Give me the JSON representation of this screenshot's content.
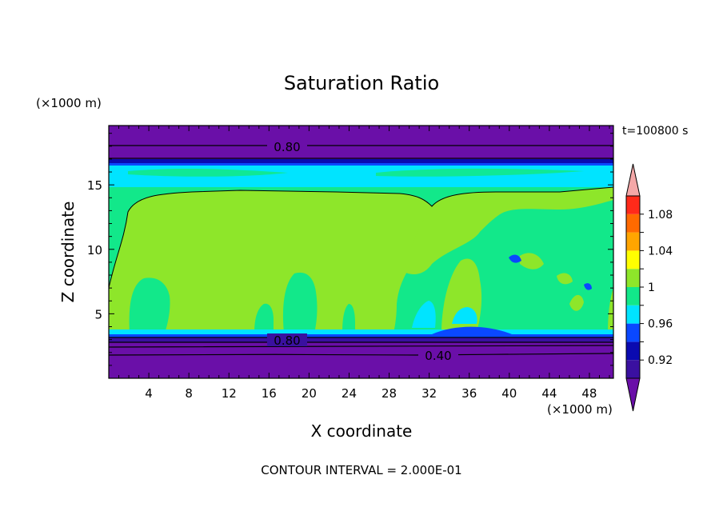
{
  "chart_data": {
    "type": "heatmap",
    "title": "Saturation Ratio",
    "xlabel": "X coordinate",
    "ylabel": "Z coordinate",
    "x_unit": "(×1000 m)",
    "y_unit": "(×1000 m)",
    "time_label": "t=100800 s",
    "footer": "CONTOUR INTERVAL = 2.000E-01",
    "xlim": [
      0,
      50.4
    ],
    "ylim": [
      0,
      19.6
    ],
    "x_ticks": [
      "4",
      "8",
      "12",
      "16",
      "20",
      "24",
      "28",
      "32",
      "36",
      "40",
      "44",
      "48"
    ],
    "y_ticks": [
      "5",
      "10",
      "15"
    ],
    "contour_labels": [
      "0.80",
      "0.80",
      "0.40"
    ],
    "colorbar": {
      "labels": [
        "0.92",
        "0.96",
        "1",
        "1.04",
        "1.08"
      ],
      "bins": [
        {
          "range": "<0.90",
          "color": "#6a0fa8"
        },
        {
          "range": "0.90-0.92",
          "color": "#3a10a0"
        },
        {
          "range": "0.92-0.94",
          "color": "#0a0ab0"
        },
        {
          "range": "0.94-0.96",
          "color": "#0a48ff"
        },
        {
          "range": "0.96-0.98",
          "color": "#00e4ff"
        },
        {
          "range": "0.98-1.00",
          "color": "#12e88a"
        },
        {
          "range": "1.00-1.02",
          "color": "#8ee62a"
        },
        {
          "range": "1.02-1.04",
          "color": "#ffff00"
        },
        {
          "range": "1.04-1.06",
          "color": "#ffa500"
        },
        {
          "range": "1.06-1.08",
          "color": "#ff6a00"
        },
        {
          "range": "1.08-1.10",
          "color": "#ff2a1a"
        },
        {
          "range": ">1.10",
          "color": "#f4a8a8"
        }
      ]
    },
    "layers": [
      {
        "z": [
          0,
          3.2
        ],
        "value": "<0.90"
      },
      {
        "z": [
          3.2,
          3.5
        ],
        "value": "0.90-0.94"
      },
      {
        "z": [
          3.5,
          14.8
        ],
        "value": "0.98-1.02 (mixed cloud field)"
      },
      {
        "z": [
          14.8,
          15.3
        ],
        "value": "0.98-1.00"
      },
      {
        "z": [
          15.3,
          17.0
        ],
        "value": "0.96-0.98"
      },
      {
        "z": [
          17.0,
          17.5
        ],
        "value": "0.92-0.96"
      },
      {
        "z": [
          17.5,
          19.6
        ],
        "value": "<0.90"
      }
    ]
  }
}
